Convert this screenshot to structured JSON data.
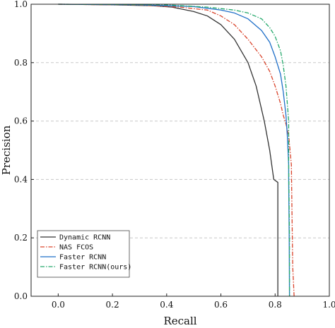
{
  "chart_data": {
    "type": "line",
    "title": "",
    "xlabel": "Recall",
    "ylabel": "Precision",
    "xlim": [
      -0.1,
      1.0
    ],
    "ylim": [
      0.0,
      1.0
    ],
    "xticks": [
      "0.0",
      "0.2",
      "0.4",
      "0.6",
      "0.8",
      "1.0"
    ],
    "yticks": [
      "0.0",
      "0.2",
      "0.4",
      "0.6",
      "0.8",
      "1.0"
    ],
    "grid": "horizontal dashed",
    "legend_position": "lower-left",
    "series": [
      {
        "name": "Dynamic RCNN",
        "color": "#333333",
        "dash": "solid",
        "points": [
          [
            0.0,
            1.0
          ],
          [
            0.2,
            0.998
          ],
          [
            0.35,
            0.995
          ],
          [
            0.42,
            0.99
          ],
          [
            0.5,
            0.975
          ],
          [
            0.55,
            0.96
          ],
          [
            0.6,
            0.93
          ],
          [
            0.65,
            0.88
          ],
          [
            0.7,
            0.8
          ],
          [
            0.73,
            0.72
          ],
          [
            0.76,
            0.6
          ],
          [
            0.78,
            0.5
          ],
          [
            0.795,
            0.4
          ],
          [
            0.81,
            0.39
          ],
          [
            0.81,
            0.0
          ]
        ]
      },
      {
        "name": "NAS FCOS",
        "color": "#d9432b",
        "dash": "dashdot",
        "points": [
          [
            0.0,
            1.0
          ],
          [
            0.3,
            0.997
          ],
          [
            0.45,
            0.99
          ],
          [
            0.55,
            0.98
          ],
          [
            0.6,
            0.96
          ],
          [
            0.65,
            0.93
          ],
          [
            0.7,
            0.88
          ],
          [
            0.75,
            0.82
          ],
          [
            0.78,
            0.77
          ],
          [
            0.8,
            0.72
          ],
          [
            0.82,
            0.66
          ],
          [
            0.83,
            0.62
          ],
          [
            0.84,
            0.59
          ],
          [
            0.85,
            0.55
          ],
          [
            0.855,
            0.5
          ],
          [
            0.86,
            0.45
          ],
          [
            0.862,
            0.3
          ],
          [
            0.865,
            0.1
          ],
          [
            0.87,
            0.0
          ]
        ]
      },
      {
        "name": "Faster RCNN",
        "color": "#1f6fc8",
        "dash": "solid",
        "points": [
          [
            0.0,
            1.0
          ],
          [
            0.3,
            0.998
          ],
          [
            0.5,
            0.992
          ],
          [
            0.6,
            0.98
          ],
          [
            0.65,
            0.97
          ],
          [
            0.7,
            0.95
          ],
          [
            0.75,
            0.91
          ],
          [
            0.78,
            0.87
          ],
          [
            0.8,
            0.82
          ],
          [
            0.82,
            0.76
          ],
          [
            0.83,
            0.7
          ],
          [
            0.84,
            0.62
          ],
          [
            0.845,
            0.55
          ],
          [
            0.85,
            0.45
          ],
          [
            0.85,
            0.4
          ],
          [
            0.852,
            0.2
          ],
          [
            0.853,
            0.0
          ]
        ]
      },
      {
        "name": "Faster RCNN(ours)",
        "color": "#22a86a",
        "dash": "dashdot",
        "points": [
          [
            0.0,
            1.0
          ],
          [
            0.4,
            0.998
          ],
          [
            0.55,
            0.99
          ],
          [
            0.65,
            0.98
          ],
          [
            0.7,
            0.97
          ],
          [
            0.75,
            0.95
          ],
          [
            0.78,
            0.92
          ],
          [
            0.8,
            0.89
          ],
          [
            0.82,
            0.84
          ],
          [
            0.83,
            0.79
          ],
          [
            0.84,
            0.72
          ],
          [
            0.845,
            0.66
          ],
          [
            0.85,
            0.6
          ],
          [
            0.85,
            0.45
          ],
          [
            0.853,
            0.2
          ],
          [
            0.853,
            0.0
          ]
        ]
      }
    ]
  }
}
